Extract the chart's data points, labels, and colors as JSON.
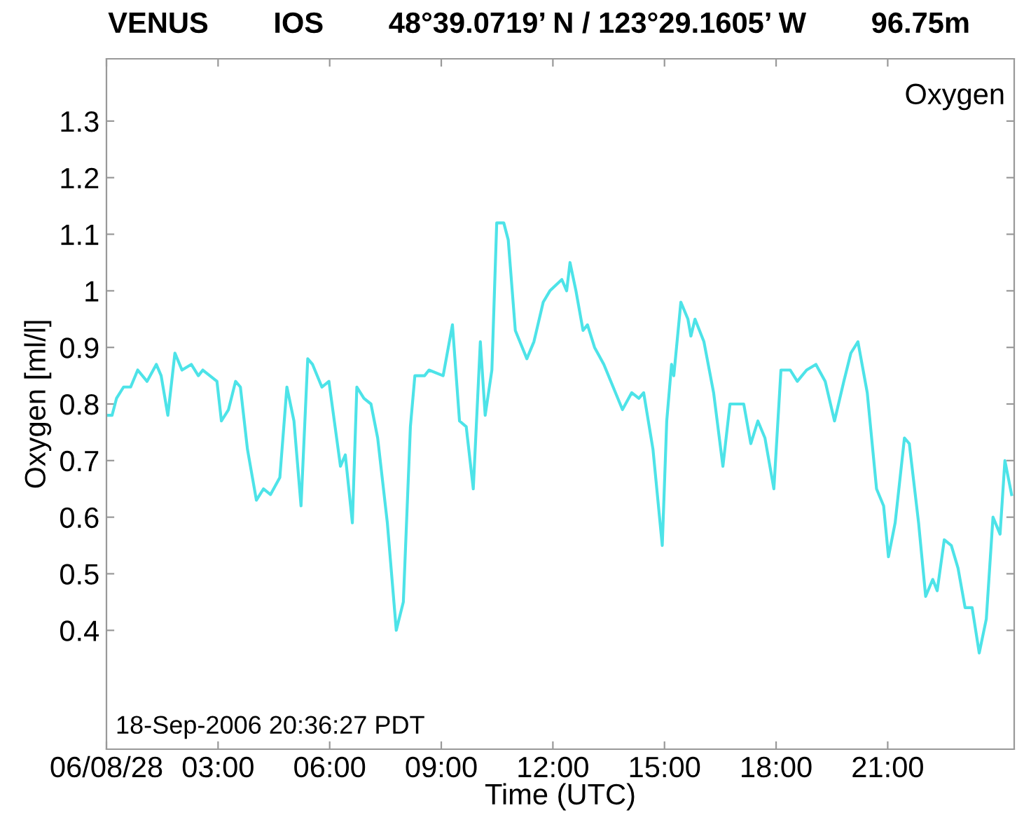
{
  "chart_data": {
    "type": "line",
    "title": "VENUS        IOS        48°39.0719’ N / 123°29.1605’ W        96.75m",
    "xlabel": "Time (UTC)",
    "ylabel": "Oxygen [ml/l]",
    "annotations": [
      "Oxygen",
      "18-Sep-2006 20:36:27 PDT"
    ],
    "xlim": [
      0,
      24.4
    ],
    "xticks": [
      {
        "value": 0,
        "label": "06/08/28"
      },
      {
        "value": 3,
        "label": "03:00"
      },
      {
        "value": 6,
        "label": "06:00"
      },
      {
        "value": 9,
        "label": "09:00"
      },
      {
        "value": 12,
        "label": "12:00"
      },
      {
        "value": 15,
        "label": "15:00"
      },
      {
        "value": 18,
        "label": "18:00"
      },
      {
        "value": 21,
        "label": "21:00"
      }
    ],
    "ylim": [
      0.19,
      1.41
    ],
    "yticks": [
      0.4,
      0.5,
      0.6,
      0.7,
      0.8,
      0.9,
      1,
      1.1,
      1.2,
      1.3
    ],
    "grid": false,
    "legend": false,
    "marker": "none",
    "line_style": "solid",
    "series": [
      {
        "color": "#4de3e8",
        "x": [
          0,
          0.15,
          0.27,
          0.46,
          0.65,
          0.84,
          1.09,
          1.34,
          1.47,
          1.65,
          1.84,
          2.03,
          2.28,
          2.47,
          2.59,
          2.78,
          2.97,
          3.09,
          3.28,
          3.47,
          3.6,
          3.79,
          4.03,
          4.22,
          4.41,
          4.66,
          4.85,
          5.04,
          5.23,
          5.41,
          5.54,
          5.79,
          5.98,
          6.29,
          6.42,
          6.61,
          6.73,
          6.92,
          7.11,
          7.29,
          7.55,
          7.79,
          7.98,
          8.17,
          8.29,
          8.55,
          8.67,
          9.05,
          9.3,
          9.49,
          9.67,
          9.86,
          10.05,
          10.18,
          10.36,
          10.49,
          10.68,
          10.8,
          10.99,
          11.3,
          11.49,
          11.74,
          11.92,
          12.24,
          12.37,
          12.46,
          12.62,
          12.81,
          12.93,
          13.12,
          13.37,
          13.62,
          13.87,
          14.12,
          14.31,
          14.44,
          14.69,
          14.94,
          15.06,
          15.19,
          15.25,
          15.44,
          15.63,
          15.71,
          15.82,
          16.06,
          16.32,
          16.57,
          16.76,
          16.94,
          17.13,
          17.32,
          17.51,
          17.7,
          17.94,
          18.13,
          18.38,
          18.57,
          18.82,
          19.07,
          19.32,
          19.57,
          19.82,
          20.01,
          20.2,
          20.45,
          20.7,
          20.89,
          21.02,
          21.2,
          21.45,
          21.58,
          21.83,
          22.02,
          22.21,
          22.33,
          22.52,
          22.71,
          22.89,
          23.08,
          23.27,
          23.46,
          23.65,
          23.83,
          24.02,
          24.15,
          24.33
        ],
        "values": [
          0.78,
          0.78,
          0.81,
          0.83,
          0.83,
          0.86,
          0.84,
          0.87,
          0.85,
          0.78,
          0.89,
          0.86,
          0.87,
          0.85,
          0.86,
          0.85,
          0.84,
          0.77,
          0.79,
          0.84,
          0.83,
          0.72,
          0.63,
          0.65,
          0.64,
          0.67,
          0.83,
          0.77,
          0.62,
          0.88,
          0.87,
          0.83,
          0.84,
          0.69,
          0.71,
          0.59,
          0.83,
          0.81,
          0.8,
          0.74,
          0.59,
          0.4,
          0.45,
          0.76,
          0.85,
          0.85,
          0.86,
          0.85,
          0.94,
          0.77,
          0.76,
          0.65,
          0.91,
          0.78,
          0.86,
          1.12,
          1.12,
          1.09,
          0.93,
          0.88,
          0.91,
          0.98,
          1.0,
          1.02,
          1.0,
          1.05,
          1.0,
          0.93,
          0.94,
          0.9,
          0.87,
          0.83,
          0.79,
          0.82,
          0.81,
          0.82,
          0.72,
          0.55,
          0.77,
          0.87,
          0.85,
          0.98,
          0.95,
          0.92,
          0.95,
          0.91,
          0.82,
          0.69,
          0.8,
          0.8,
          0.8,
          0.73,
          0.77,
          0.74,
          0.65,
          0.86,
          0.86,
          0.84,
          0.86,
          0.87,
          0.84,
          0.77,
          0.84,
          0.89,
          0.91,
          0.82,
          0.65,
          0.62,
          0.53,
          0.59,
          0.74,
          0.73,
          0.59,
          0.46,
          0.49,
          0.47,
          0.56,
          0.55,
          0.51,
          0.44,
          0.44,
          0.36,
          0.42,
          0.6,
          0.57,
          0.7,
          0.64
        ]
      }
    ]
  }
}
